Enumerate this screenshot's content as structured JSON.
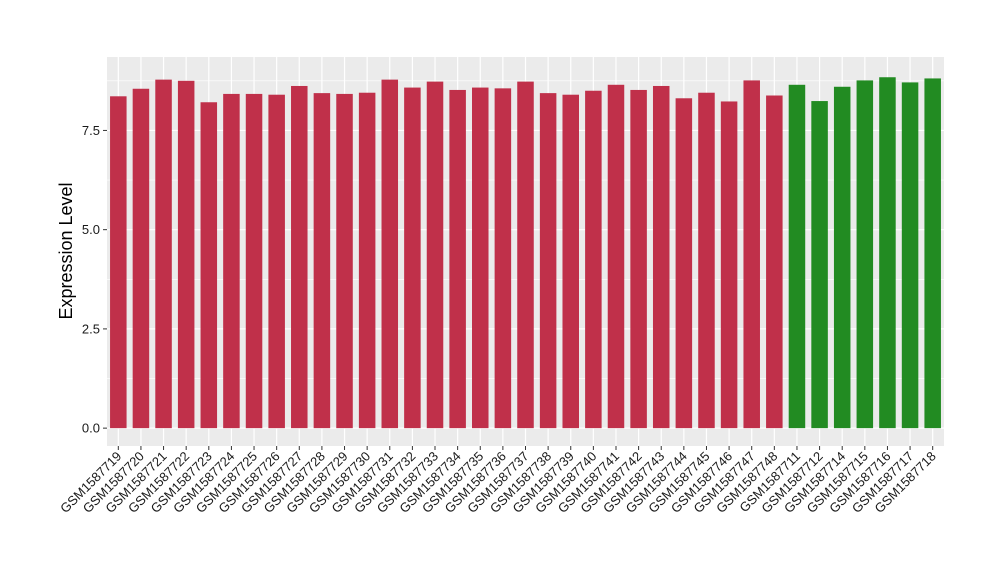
{
  "chart_data": {
    "type": "bar",
    "title": "",
    "xlabel": "",
    "ylabel": "Expression Level",
    "ylim": [
      -0.45,
      9.35
    ],
    "yticks": [
      0.0,
      2.5,
      5.0,
      7.5
    ],
    "ytick_labels": [
      "0.0",
      "2.5",
      "5.0",
      "7.5"
    ],
    "grid": true,
    "legend": "none",
    "background": "#ebebeb",
    "gridline_color": "#ffffff",
    "categories": [
      "GSM1587719",
      "GSM1587720",
      "GSM1587721",
      "GSM1587722",
      "GSM1587723",
      "GSM1587724",
      "GSM1587725",
      "GSM1587726",
      "GSM1587727",
      "GSM1587728",
      "GSM1587729",
      "GSM1587730",
      "GSM1587731",
      "GSM1587732",
      "GSM1587733",
      "GSM1587734",
      "GSM1587735",
      "GSM1587736",
      "GSM1587737",
      "GSM1587738",
      "GSM1587739",
      "GSM1587740",
      "GSM1587741",
      "GSM1587742",
      "GSM1587743",
      "GSM1587744",
      "GSM1587745",
      "GSM1587746",
      "GSM1587747",
      "GSM1587748",
      "GSM1587711",
      "GSM1587712",
      "GSM1587714",
      "GSM1587715",
      "GSM1587716",
      "GSM1587717",
      "GSM1587718"
    ],
    "values": [
      8.36,
      8.55,
      8.78,
      8.75,
      8.21,
      8.42,
      8.42,
      8.4,
      8.62,
      8.44,
      8.42,
      8.45,
      8.78,
      8.58,
      8.73,
      8.52,
      8.58,
      8.56,
      8.73,
      8.44,
      8.4,
      8.5,
      8.65,
      8.52,
      8.62,
      8.31,
      8.45,
      8.23,
      8.76,
      8.38,
      8.65,
      8.24,
      8.6,
      8.76,
      8.84,
      8.71,
      8.81
    ],
    "groups": [
      "a",
      "a",
      "a",
      "a",
      "a",
      "a",
      "a",
      "a",
      "a",
      "a",
      "a",
      "a",
      "a",
      "a",
      "a",
      "a",
      "a",
      "a",
      "a",
      "a",
      "a",
      "a",
      "a",
      "a",
      "a",
      "a",
      "a",
      "a",
      "a",
      "a",
      "b",
      "b",
      "b",
      "b",
      "b",
      "b",
      "b"
    ],
    "group_colors": {
      "a": "#c0304a",
      "b": "#228b22"
    }
  }
}
